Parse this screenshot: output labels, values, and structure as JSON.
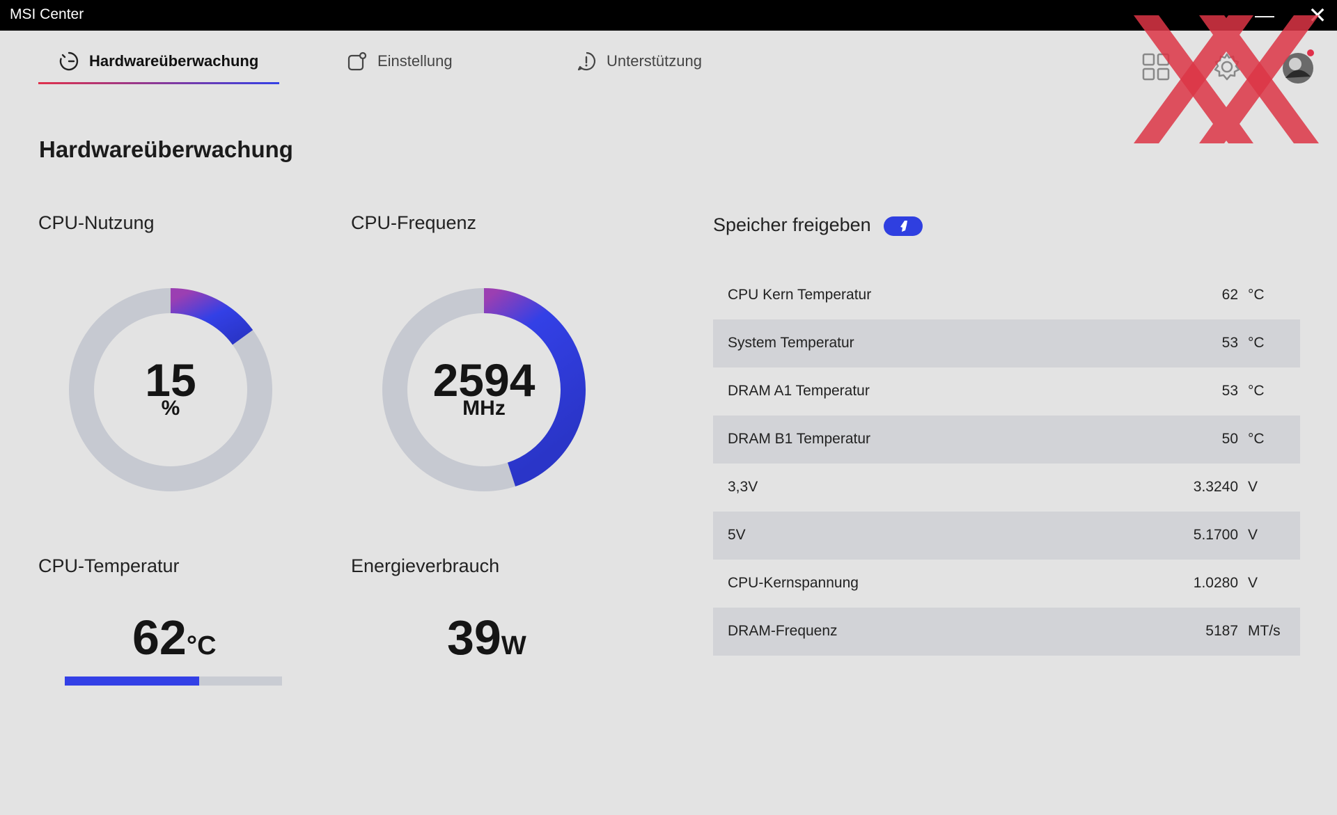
{
  "window": {
    "title": "MSI Center",
    "minimize_glyph": "—",
    "close_glyph": "✕"
  },
  "tabs": [
    {
      "label": "Hardwareüberwachung",
      "icon": "monitor-gauge-icon",
      "active": true
    },
    {
      "label": "Einstellung",
      "icon": "settings-square-icon",
      "active": false
    },
    {
      "label": "Unterstützung",
      "icon": "support-alert-icon",
      "active": false
    }
  ],
  "toolbar_icons": [
    "apps-grid-icon",
    "gear-icon",
    "user-avatar-icon"
  ],
  "page_title": "Hardwareüberwachung",
  "cpu_usage": {
    "label": "CPU-Nutzung",
    "value": "15",
    "unit": "%",
    "percent": 15
  },
  "cpu_frequency": {
    "label": "CPU-Frequenz",
    "value": "2594",
    "unit": "MHz",
    "fill_fraction": 0.45
  },
  "cpu_temperature": {
    "label": "CPU-Temperatur",
    "value": "62",
    "unit": "°C",
    "bar_fraction": 0.62
  },
  "power": {
    "label": "Energieverbrauch",
    "value": "39",
    "unit": "W"
  },
  "memory_release": {
    "label": "Speicher freigeben",
    "icon": "rocket-icon"
  },
  "sensors": [
    {
      "label": "CPU Kern Temperatur",
      "value": "62",
      "unit": "°C"
    },
    {
      "label": "System Temperatur",
      "value": "53",
      "unit": "°C"
    },
    {
      "label": "DRAM A1 Temperatur",
      "value": "53",
      "unit": "°C"
    },
    {
      "label": "DRAM B1 Temperatur",
      "value": "50",
      "unit": "°C"
    },
    {
      "label": "3,3V",
      "value": "3.3240",
      "unit": "V"
    },
    {
      "label": "5V",
      "value": "5.1700",
      "unit": "V"
    },
    {
      "label": "CPU-Kernspannung",
      "value": "1.0280",
      "unit": "V"
    },
    {
      "label": "DRAM-Frequenz",
      "value": "5187",
      "unit": "MT/s"
    }
  ],
  "colors": {
    "accent_blue": "#3340e6",
    "accent_purple": "#9b3fb2",
    "accent_red": "#e0314b",
    "track_gray": "#c6c9d1",
    "background": "#e3e3e3",
    "watermark_red": "#dc3545"
  }
}
